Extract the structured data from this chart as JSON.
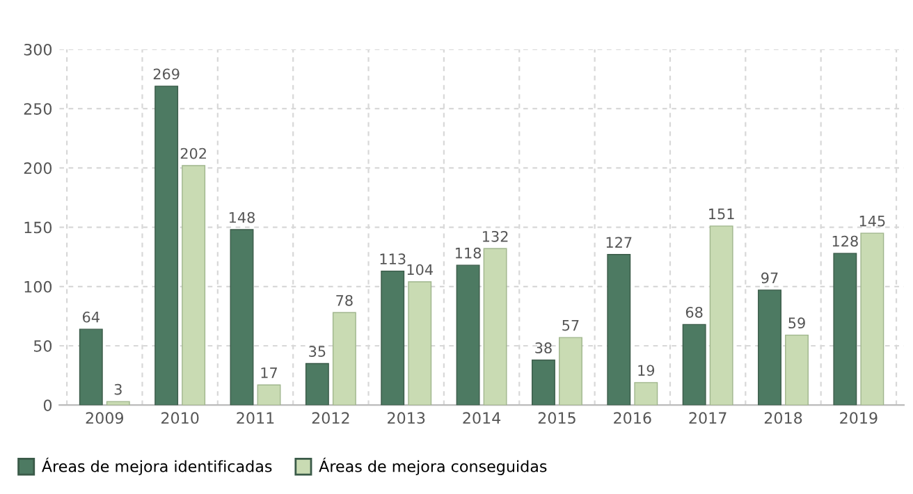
{
  "chart_data": {
    "type": "bar",
    "categories": [
      "2009",
      "2010",
      "2011",
      "2012",
      "2013",
      "2014",
      "2015",
      "2016",
      "2017",
      "2018",
      "2019"
    ],
    "series": [
      {
        "name": "Áreas de mejora identificadas",
        "color": "#4d7a62",
        "values": [
          64,
          269,
          148,
          35,
          113,
          118,
          38,
          127,
          68,
          97,
          128
        ]
      },
      {
        "name": "Áreas de mejora conseguidas",
        "color": "#c9dbb3",
        "values": [
          3,
          202,
          17,
          78,
          104,
          132,
          57,
          19,
          151,
          59,
          145
        ]
      }
    ],
    "ylim": [
      0,
      300
    ],
    "yticks": [
      0,
      50,
      100,
      150,
      200,
      250,
      300
    ],
    "grid": true,
    "legend": "bottom left",
    "data_labels": true
  }
}
